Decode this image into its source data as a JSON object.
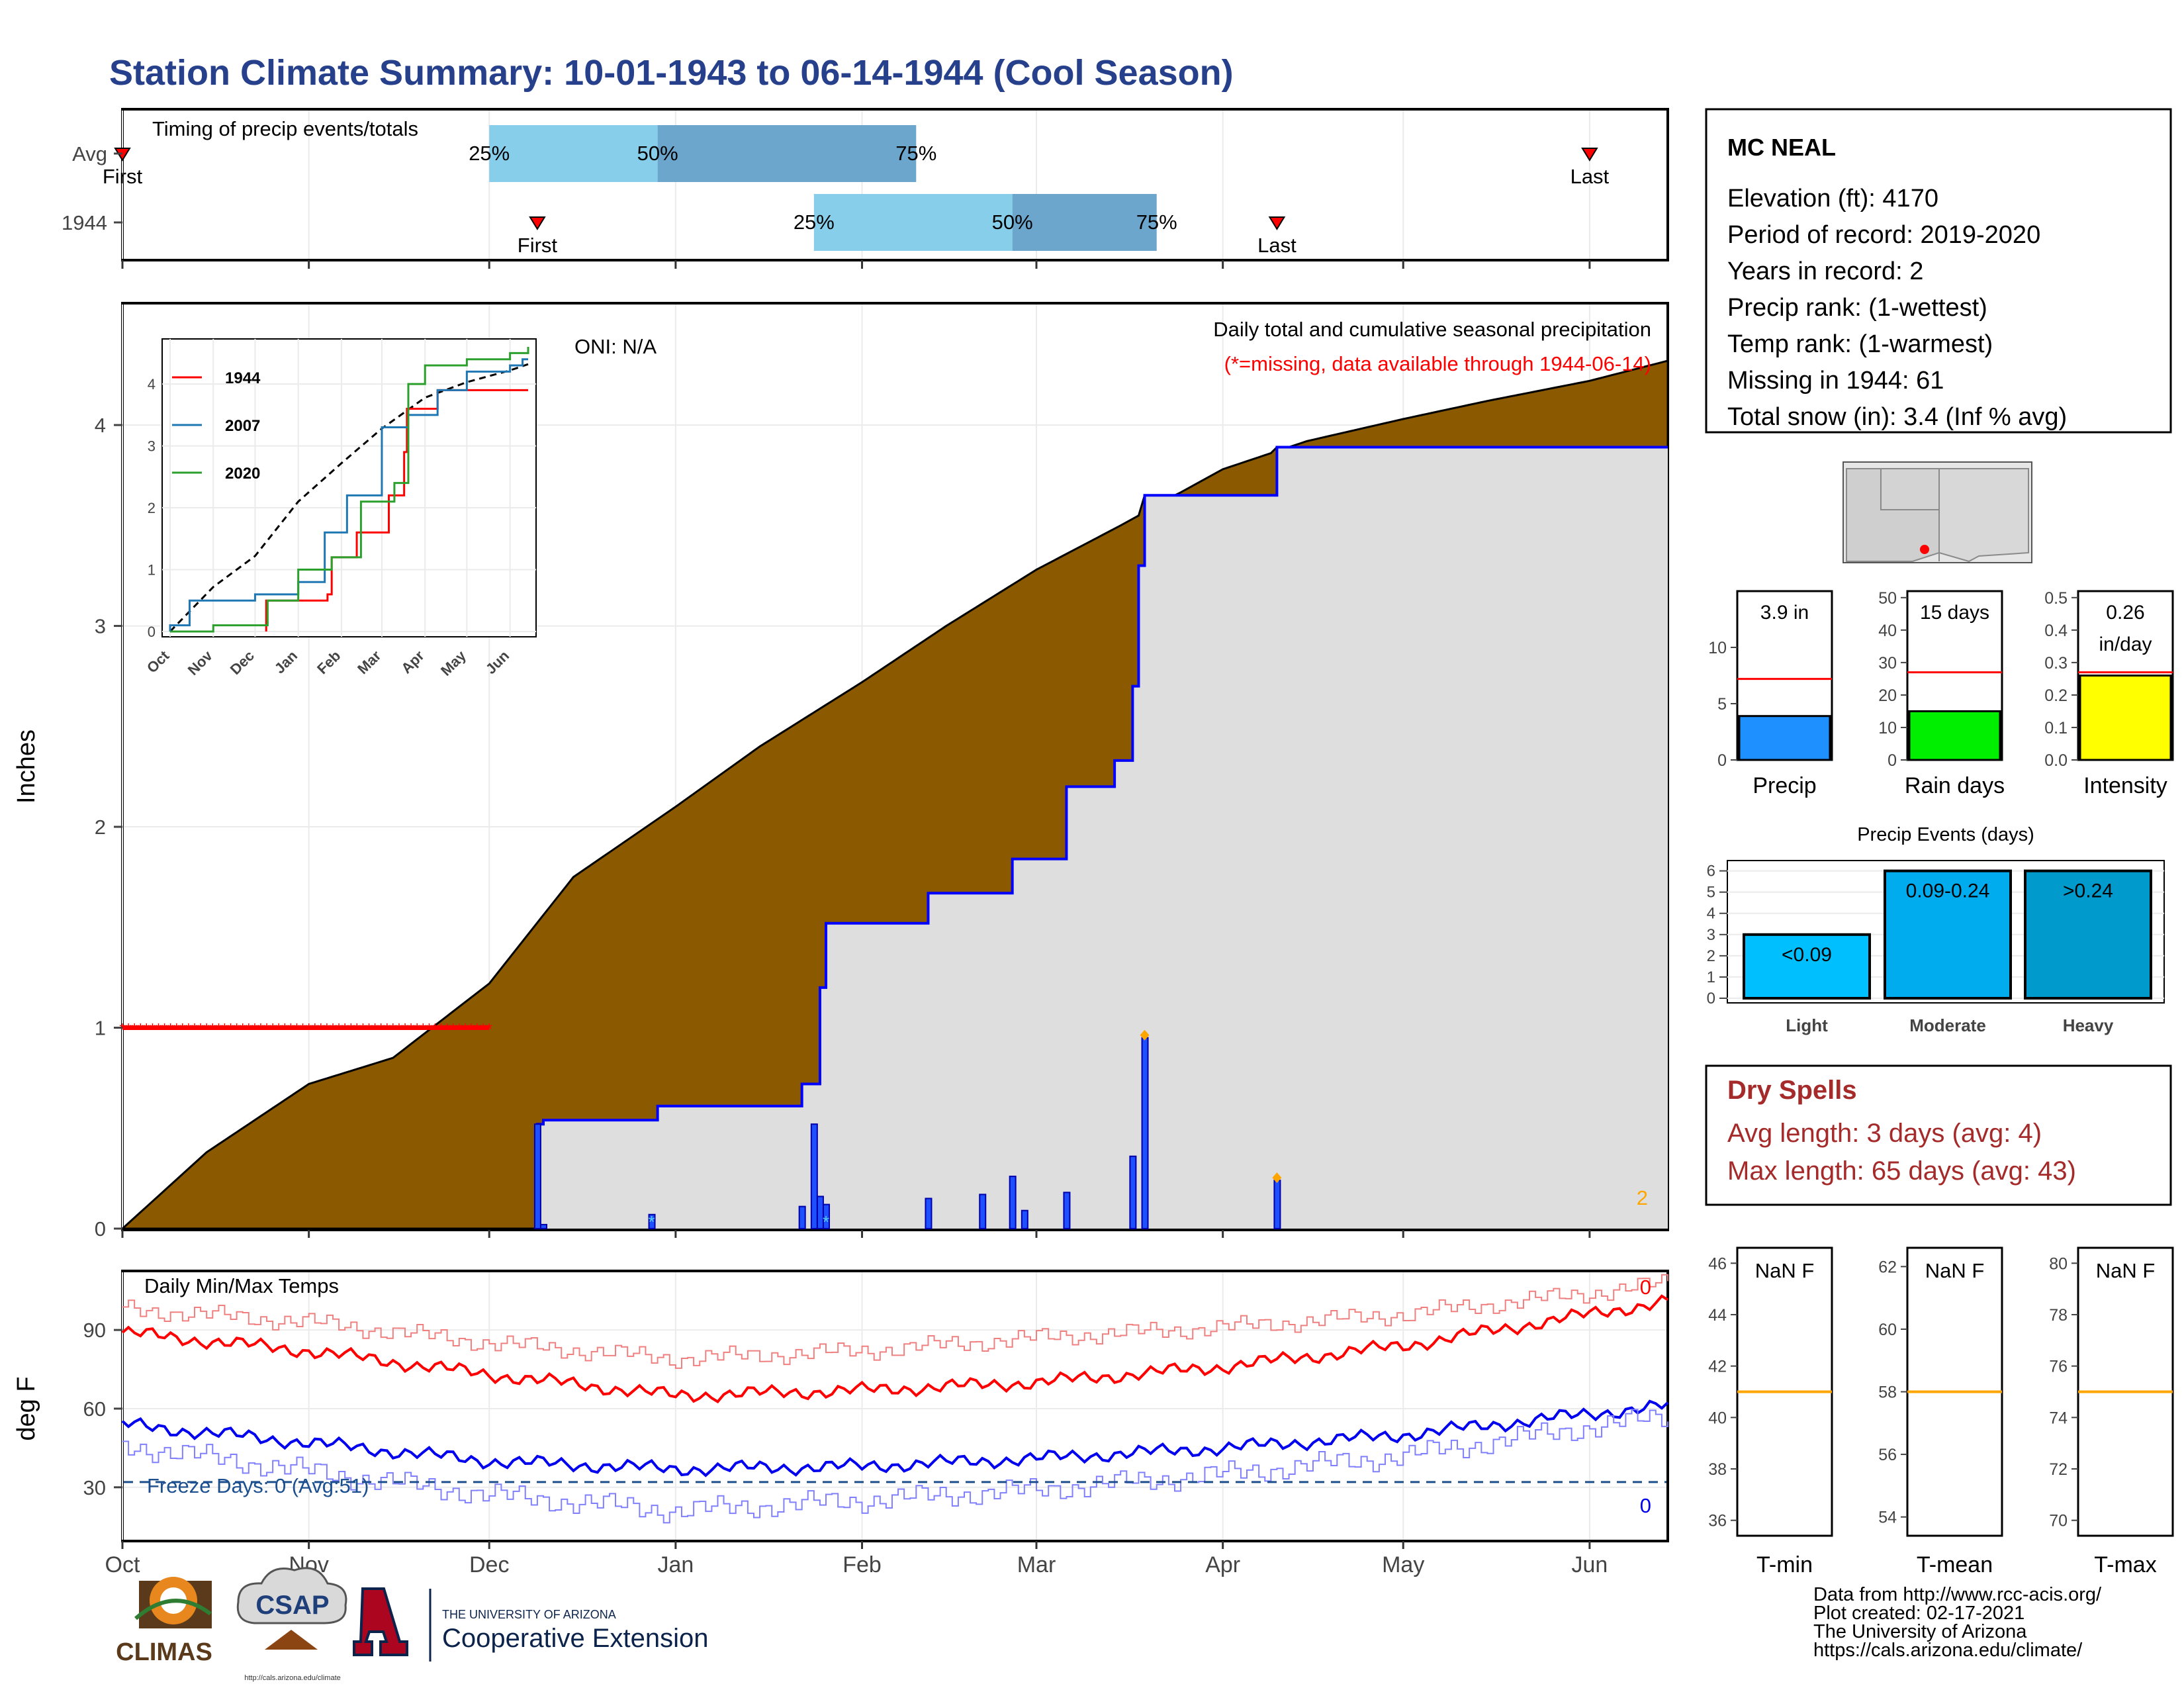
{
  "title": "Station Climate Summary: 10-01-1943 to 06-14-1944 (Cool Season)",
  "timing_panel": {
    "label": "Timing of precip events/totals",
    "rows": [
      {
        "name": "Avg",
        "first_label": "First",
        "last_label": "Last",
        "first": "Oct 1",
        "last": "Jun 1",
        "p25": "Dec 1",
        "p50": "Dec 29",
        "p75": "Feb 10",
        "p25_label": "25%",
        "p50_label": "50%",
        "p75_label": "75%"
      },
      {
        "name": "1944",
        "first_label": "First",
        "last_label": "Last",
        "first": "Dec 9",
        "last": "Apr 10",
        "p25": "Jan 24",
        "p50": "Feb 26",
        "p75": "Mar 21",
        "p25_label": "25%",
        "p50_label": "50%",
        "p75_label": "75%"
      }
    ]
  },
  "precip_panel": {
    "title": "Daily total and cumulative seasonal precipitation",
    "missing_note": "(*=missing, data available through 1944-06-14)",
    "oni": "ONI: N/A",
    "ylabel": "Inches",
    "yticks": [
      "0",
      "1",
      "2",
      "3",
      "4"
    ],
    "corner_count": "2"
  },
  "temp_panel": {
    "title": "Daily Min/Max Temps",
    "ylabel": "deg F",
    "yticks": [
      "30",
      "60",
      "90"
    ],
    "freeze_label": "Freeze Days: 0 (Avg:51)",
    "max_count": "0",
    "min_count": "0"
  },
  "x_months": [
    "Oct",
    "Nov",
    "Dec",
    "Jan",
    "Feb",
    "Mar",
    "Apr",
    "May",
    "Jun"
  ],
  "inset": {
    "legend": [
      "1944",
      "2007",
      "2020"
    ],
    "yticks": [
      "0",
      "1",
      "2",
      "3",
      "4"
    ],
    "xticks": [
      "Oct",
      "Nov",
      "Dec",
      "Jan",
      "Feb",
      "Mar",
      "Apr",
      "May",
      "Jun"
    ]
  },
  "station": {
    "name": "MC NEAL",
    "lines": [
      "Elevation (ft): 4170",
      "Period of record: 2019-2020",
      "Years in record: 2",
      "Precip rank:  (1-wettest)",
      "Temp rank:  (1-warmest)",
      "Missing in 1944: 61",
      "Total snow (in): 3.4 (Inf % avg)"
    ]
  },
  "summary_bars": [
    {
      "label": "Precip",
      "value_text": "3.9 in",
      "value": 3.9,
      "avg": 7.2,
      "ymax": 15,
      "yticks": [
        "0",
        "5",
        "10"
      ],
      "color": "#1e90ff"
    },
    {
      "label": "Rain days",
      "value_text": "15 days",
      "value": 15,
      "avg": 27,
      "ymax": 52,
      "yticks": [
        "0",
        "10",
        "20",
        "30",
        "40",
        "50"
      ],
      "color": "#00ee00"
    },
    {
      "label": "Intensity",
      "value_text": "0.26 in/day",
      "value": 0.26,
      "avg": 0.27,
      "ymax": 0.52,
      "yticks": [
        "0.0",
        "0.1",
        "0.2",
        "0.3",
        "0.4",
        "0.5"
      ],
      "color": "#ffff00"
    }
  ],
  "precip_events": {
    "title": "Precip Events (days)",
    "yticks": [
      "0",
      "1",
      "2",
      "3",
      "4",
      "5",
      "6"
    ],
    "bars": [
      {
        "label": "Light",
        "range": "<0.09",
        "value": 3,
        "color": "#00bfff"
      },
      {
        "label": "Moderate",
        "range": "0.09-0.24",
        "value": 6,
        "color": "#00acee"
      },
      {
        "label": "Heavy",
        "range": ">0.24",
        "value": 6,
        "color": "#009acd"
      }
    ]
  },
  "dry_spells": {
    "title": "Dry Spells",
    "avg_line": "Avg length: 3 days (avg: 4)",
    "max_line": "Max length: 65 days (avg: 43)"
  },
  "temp_boxes": [
    {
      "label": "T-min",
      "value_text": "NaN F",
      "avg": 41,
      "yticks": [
        "36",
        "38",
        "40",
        "42",
        "44",
        "46"
      ]
    },
    {
      "label": "T-mean",
      "value_text": "NaN F",
      "avg": 58,
      "yticks": [
        "54",
        "56",
        "58",
        "60",
        "62"
      ]
    },
    {
      "label": "T-max",
      "value_text": "NaN F",
      "avg": 75,
      "yticks": [
        "70",
        "72",
        "74",
        "76",
        "78",
        "80"
      ]
    }
  ],
  "footer": {
    "lines": [
      "Data from http://www.rcc-acis.org/",
      "Plot created: 02-17-2021",
      "The University of Arizona",
      "https://cals.arizona.edu/climate/"
    ],
    "logo_climas": "CLIMAS",
    "logo_csap": "CSAP",
    "logo_csap_url": "http://cals.arizona.edu/climate",
    "logo_ua_top": "THE UNIVERSITY OF ARIZONA",
    "logo_ua_bottom": "Cooperative Extension"
  },
  "chart_data": [
    {
      "type": "area",
      "title": "Daily total and cumulative seasonal precipitation",
      "ylabel": "Inches",
      "ylim": [
        0,
        4.6
      ],
      "x_range": [
        "1943-10-01",
        "1944-06-14"
      ],
      "series": [
        {
          "name": "",
          "kind": "cumulative-average",
          "x": [
            "1943-10-01",
            "1943-10-15",
            "1943-11-01",
            "1943-11-15",
            "1943-12-01",
            "1943-12-15",
            "1944-01-01",
            "1944-01-15",
            "1944-02-01",
            "1944-02-15",
            "1944-03-01",
            "1944-03-15",
            "1944-04-01",
            "1944-04-15",
            "1944-05-01",
            "1944-05-15",
            "1944-06-01",
            "1944-06-14"
          ],
          "y": [
            0,
            0.38,
            0.72,
            0.85,
            1.22,
            1.75,
            2.1,
            2.4,
            2.72,
            3.0,
            3.28,
            3.5,
            3.78,
            3.92,
            4.03,
            4.12,
            4.22,
            4.32
          ]
        },
        {
          "name": "1944",
          "kind": "cumulative",
          "x": [
            "1943-12-09",
            "1943-12-10",
            "1943-12-29",
            "1944-01-22",
            "1944-01-25",
            "1944-01-26",
            "1944-02-12",
            "1944-02-26",
            "1944-03-06",
            "1944-03-14",
            "1944-03-17",
            "1944-03-18",
            "1944-03-19",
            "1944-04-10",
            "1944-06-14"
          ],
          "y": [
            0.52,
            0.54,
            0.61,
            0.72,
            1.2,
            1.52,
            1.67,
            1.84,
            2.2,
            2.33,
            2.7,
            3.3,
            3.65,
            3.89,
            3.89
          ]
        },
        {
          "name": "1944 daily",
          "kind": "daily-bars",
          "x": [
            "1943-12-09",
            "1943-12-10",
            "1943-12-28",
            "1944-01-22",
            "1944-01-24",
            "1944-01-25",
            "1944-01-26",
            "1944-02-12",
            "1944-02-21",
            "1944-02-26",
            "1944-02-28",
            "1944-03-06",
            "1944-03-17",
            "1944-03-19",
            "1944-04-10"
          ],
          "y": [
            0.52,
            0.02,
            0.07,
            0.11,
            0.52,
            0.16,
            0.12,
            0.15,
            0.17,
            0.26,
            0.09,
            0.18,
            0.36,
            0.95,
            0.24
          ]
        },
        {
          "name": "missing",
          "kind": "missing-days",
          "x": [
            "1943-10-01",
            "1943-12-01"
          ],
          "y": [
            1,
            1
          ]
        }
      ]
    },
    {
      "type": "line",
      "title": "Daily Min/Max Temps",
      "ylabel": "deg F",
      "ylim": [
        10,
        112
      ],
      "x_range": [
        "1943-10-01",
        "1944-06-14"
      ],
      "freeze_line": 32,
      "series": [
        {
          "name": "",
          "kind": "avg-max",
          "x": [
            "1943-10-01",
            "1943-11-01",
            "1943-12-01",
            "1944-01-01",
            "1944-02-01",
            "1944-03-01",
            "1944-04-01",
            "1944-05-01",
            "1944-06-01",
            "1944-06-14"
          ],
          "y": [
            89,
            82,
            73,
            65,
            67,
            70,
            76,
            84,
            96,
            101
          ]
        },
        {
          "name": "",
          "kind": "avg-min",
          "x": [
            "1943-10-01",
            "1943-11-01",
            "1943-12-01",
            "1944-01-01",
            "1944-02-01",
            "1944-03-01",
            "1944-04-01",
            "1944-05-01",
            "1944-06-01",
            "1944-06-14"
          ],
          "y": [
            54,
            47,
            40,
            37,
            38,
            41,
            45,
            50,
            58,
            61
          ]
        },
        {
          "name": "",
          "kind": "record-max",
          "x": [
            "1943-10-01",
            "1943-11-01",
            "1943-12-01",
            "1944-01-01",
            "1944-02-01",
            "1944-03-01",
            "1944-04-01",
            "1944-05-01",
            "1944-06-01",
            "1944-06-14"
          ],
          "y": [
            98,
            93,
            85,
            79,
            82,
            87,
            91,
            96,
            104,
            108
          ]
        },
        {
          "name": "",
          "kind": "record-min",
          "x": [
            "1943-10-01",
            "1943-11-01",
            "1943-12-01",
            "1944-01-01",
            "1944-02-01",
            "1944-03-01",
            "1944-04-01",
            "1944-05-01",
            "1944-06-01",
            "1944-06-14"
          ],
          "y": [
            46,
            36,
            27,
            21,
            25,
            29,
            35,
            42,
            53,
            57
          ]
        }
      ]
    },
    {
      "type": "line",
      "title": "",
      "xticks": [
        "Oct",
        "Nov",
        "Dec",
        "Jan",
        "Feb",
        "Mar",
        "Apr",
        "May",
        "Jun"
      ],
      "ylim": [
        0,
        4.6
      ],
      "series": [
        {
          "name": "",
          "kind": "average",
          "x": [
            "Oct",
            "Nov",
            "Dec",
            "Jan",
            "Feb",
            "Mar",
            "Apr",
            "May",
            "Jun",
            "Jun 14"
          ],
          "y": [
            0,
            0.72,
            1.22,
            2.1,
            2.72,
            3.28,
            3.78,
            4.03,
            4.22,
            4.32
          ]
        },
        {
          "name": "1944",
          "x": [
            "Dec 9",
            "Jan 22",
            "Jan 25",
            "Feb 12",
            "Mar 6",
            "Mar 17",
            "Mar 19",
            "Apr 10",
            "Jun 14"
          ],
          "y": [
            0.5,
            0.6,
            1.2,
            1.6,
            2.2,
            2.9,
            3.6,
            3.9,
            3.9
          ]
        },
        {
          "name": "2007",
          "x": [
            "Oct 1",
            "Oct 15",
            "Dec 1",
            "Jan 1",
            "Jan 20",
            "Feb 5",
            "Mar 1",
            "Mar 20",
            "Apr 10",
            "May 1",
            "Jun 1",
            "Jun 10"
          ],
          "y": [
            0.1,
            0.5,
            0.6,
            0.8,
            1.6,
            2.2,
            3.3,
            3.5,
            3.9,
            4.2,
            4.3,
            4.4
          ]
        },
        {
          "name": "2020",
          "x": [
            "Oct 1",
            "Nov 1",
            "Dec 10",
            "Jan 1",
            "Jan 25",
            "Feb 15",
            "Mar 10",
            "Mar 20",
            "Apr 1",
            "May 1",
            "Jun 1",
            "Jun 14"
          ],
          "y": [
            0,
            0.1,
            0.5,
            1.0,
            1.2,
            2.1,
            2.4,
            4.0,
            4.3,
            4.4,
            4.5,
            4.6
          ]
        }
      ]
    },
    {
      "type": "bar",
      "title": "Precip Events (days)",
      "categories": [
        "Light",
        "Moderate",
        "Heavy"
      ],
      "values": [
        3,
        6,
        6
      ],
      "ylim": [
        0,
        6.3
      ]
    },
    {
      "type": "bar",
      "title": "",
      "categories": [
        "Precip",
        "Rain days",
        "Intensity"
      ],
      "values": [
        3.9,
        15,
        0.26
      ],
      "averages": [
        7.2,
        27,
        0.27
      ]
    }
  ]
}
